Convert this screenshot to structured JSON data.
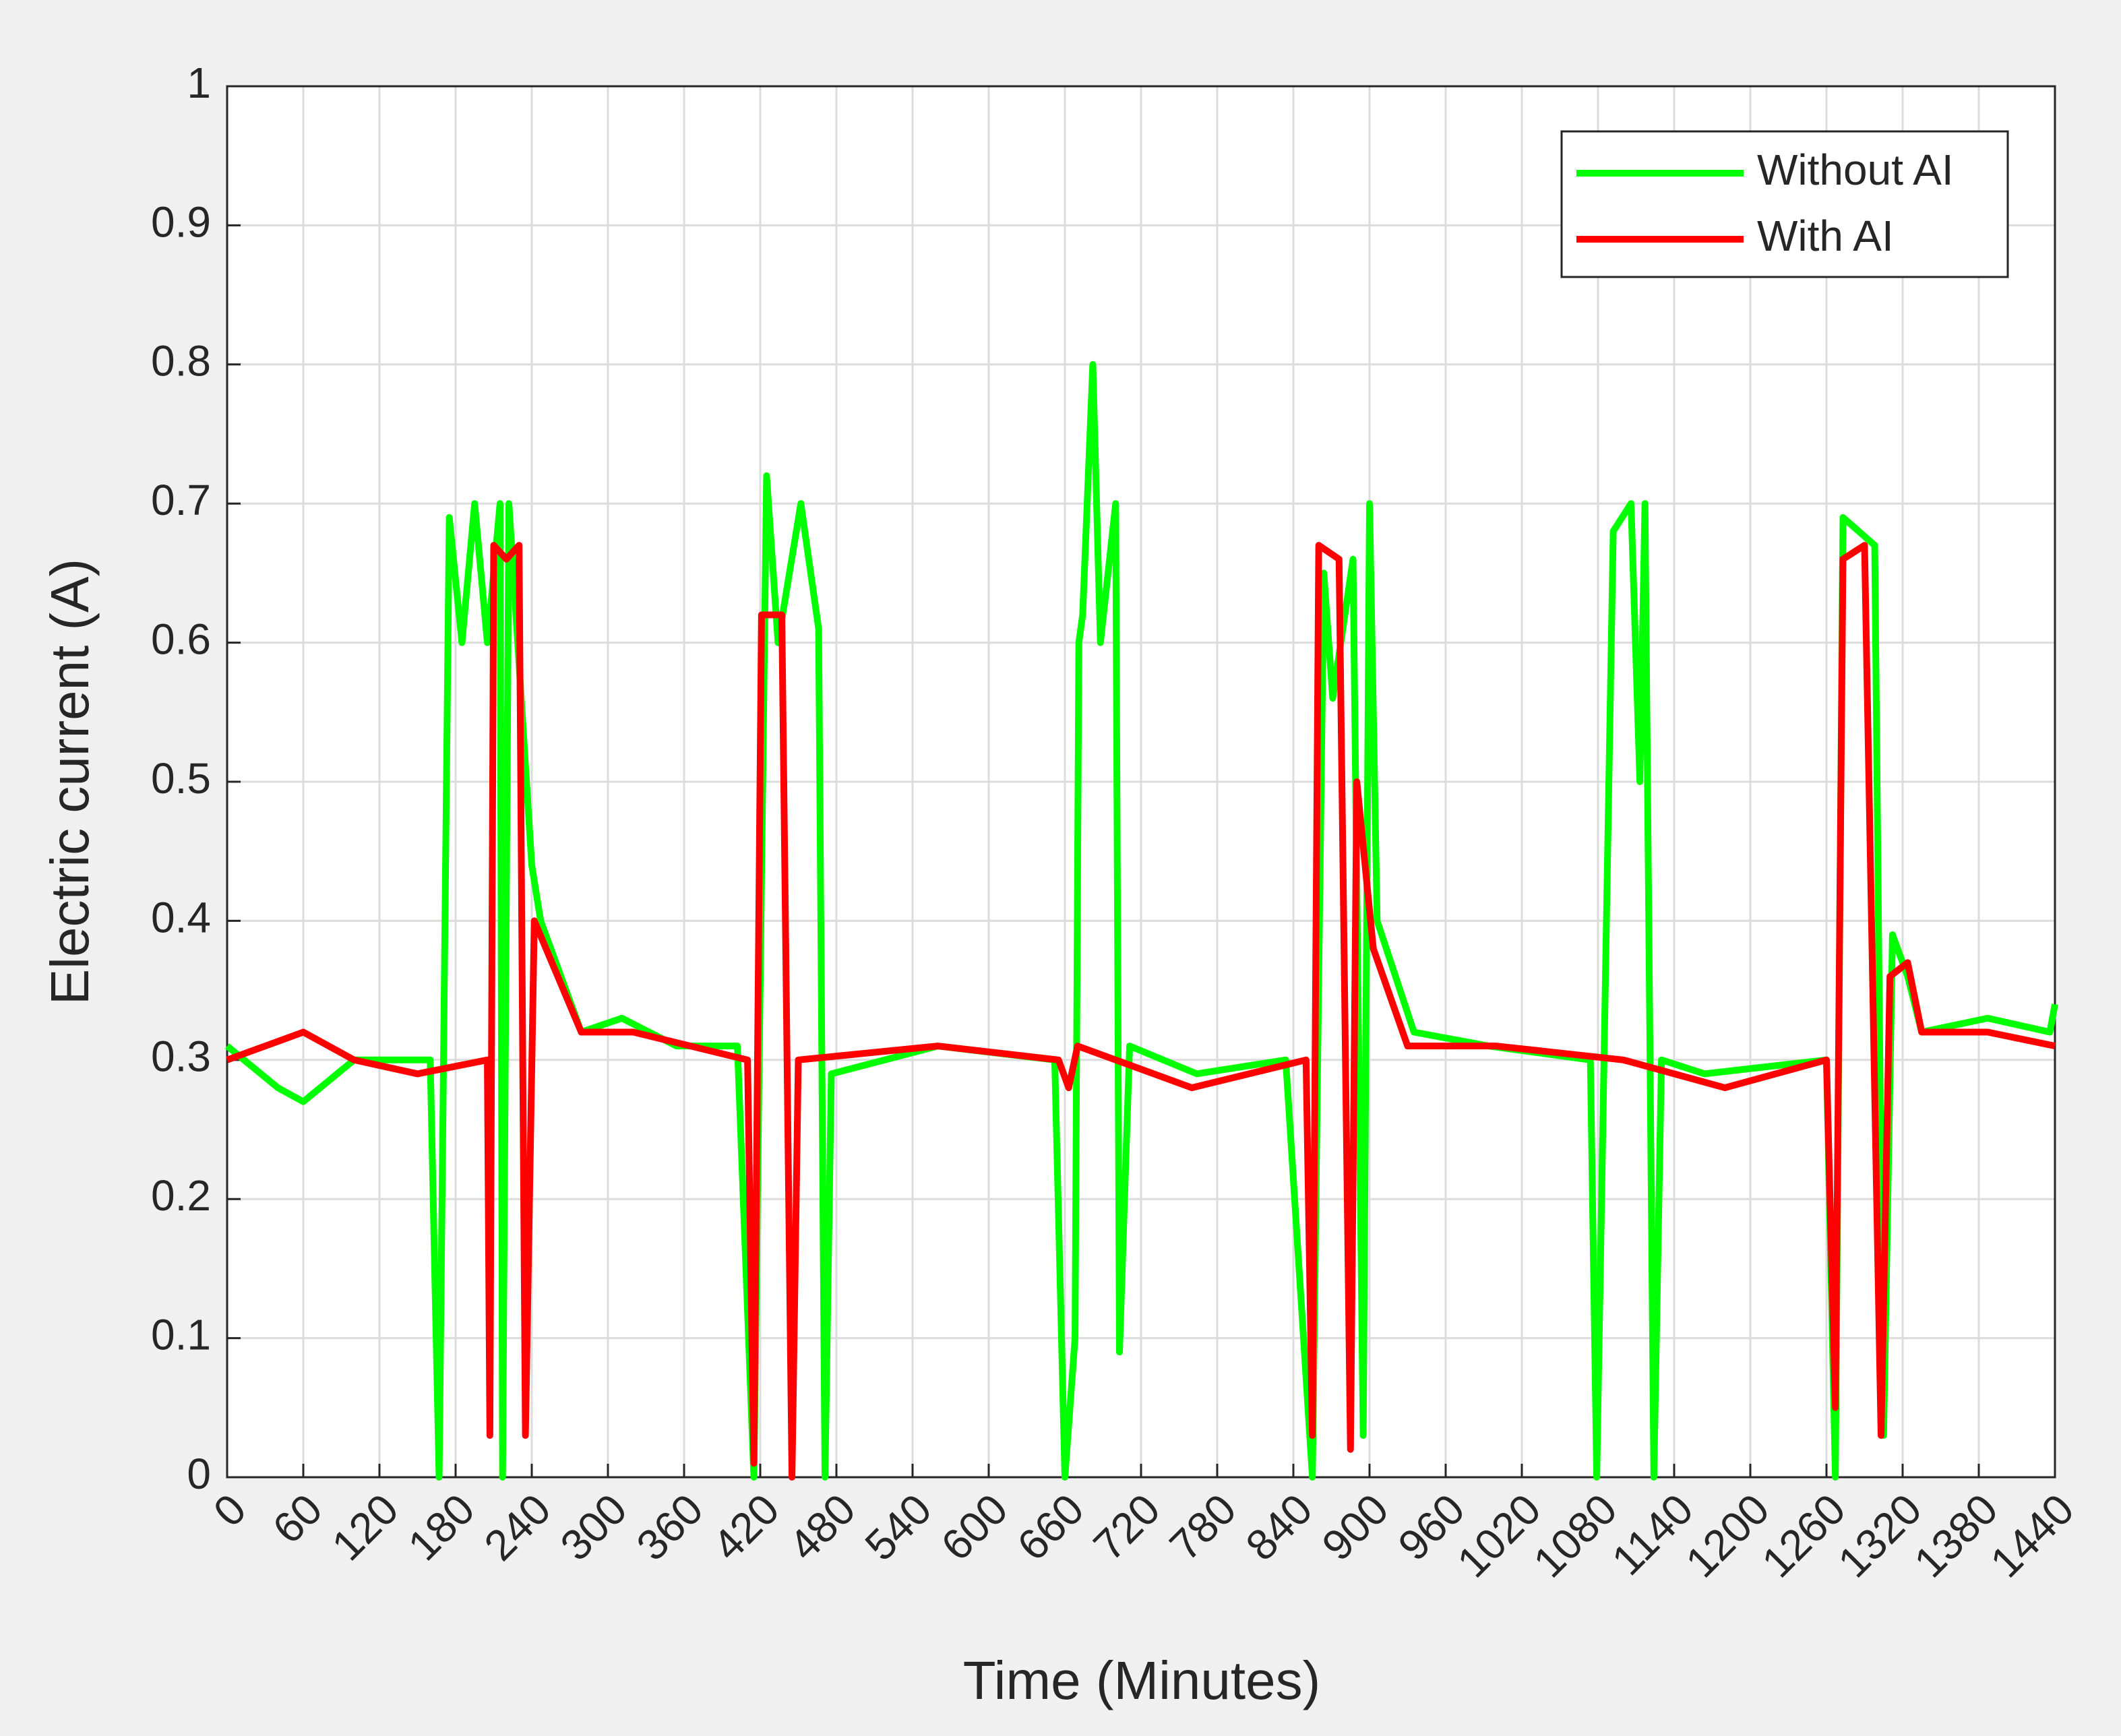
{
  "chart_data": {
    "type": "line",
    "xlabel": "Time (Minutes)",
    "ylabel": "Electric current (A)",
    "xlim": [
      0,
      1440
    ],
    "xticks": [
      0,
      60,
      120,
      180,
      240,
      300,
      360,
      420,
      480,
      540,
      600,
      660,
      720,
      780,
      840,
      900,
      960,
      1020,
      1080,
      1140,
      1200,
      1260,
      1320,
      1380,
      1440
    ],
    "ylim": [
      0,
      1
    ],
    "yticks": [
      0,
      0.1,
      0.2,
      0.3,
      0.4,
      0.5,
      0.6,
      0.7,
      0.8,
      0.9,
      1
    ],
    "grid": true,
    "legend": "northeast",
    "series": [
      {
        "name": "Without AI",
        "color": "#00ff00",
        "x": [
          0,
          40,
          60,
          100,
          160,
          167,
          175,
          185,
          195,
          205,
          215,
          217,
          222,
          240,
          247,
          279,
          311,
          354,
          402,
          415,
          425,
          434,
          452,
          466,
          471,
          476,
          560,
          652,
          660,
          668,
          671,
          674,
          682,
          688,
          700,
          703,
          711,
          764,
          834,
          855,
          864,
          871,
          887,
          895,
          900,
          906,
          935,
          994,
          1074,
          1079,
          1092,
          1106,
          1113,
          1117,
          1124,
          1130,
          1164,
          1260,
          1267,
          1273,
          1298,
          1305,
          1312,
          1324,
          1335,
          1387,
          1436,
          1440
        ],
        "values": [
          0.31,
          0.28,
          0.27,
          0.3,
          0.3,
          0,
          0.69,
          0.6,
          0.7,
          0.6,
          0.7,
          0,
          0.7,
          0.44,
          0.4,
          0.32,
          0.33,
          0.31,
          0.31,
          0,
          0.72,
          0.6,
          0.7,
          0.61,
          0,
          0.29,
          0.31,
          0.3,
          0,
          0.1,
          0.6,
          0.62,
          0.8,
          0.6,
          0.7,
          0.09,
          0.31,
          0.29,
          0.3,
          0,
          0.65,
          0.56,
          0.66,
          0.03,
          0.7,
          0.4,
          0.32,
          0.31,
          0.3,
          0,
          0.68,
          0.7,
          0.5,
          0.7,
          0,
          0.3,
          0.29,
          0.3,
          0,
          0.69,
          0.67,
          0.03,
          0.39,
          0.36,
          0.32,
          0.33,
          0.32,
          0.34
        ]
      },
      {
        "name": "With AI",
        "color": "#ff0000",
        "x": [
          0,
          30,
          60,
          100,
          150,
          205,
          207,
          210,
          220,
          230,
          235,
          242,
          279,
          320,
          410,
          415,
          421,
          437,
          445,
          450,
          560,
          655,
          663,
          670,
          760,
          850,
          855,
          860,
          876,
          885,
          890,
          903,
          930,
          1000,
          1100,
          1180,
          1260,
          1267,
          1273,
          1290,
          1303,
          1310,
          1324,
          1335,
          1387,
          1440
        ],
        "values": [
          0.3,
          0.31,
          0.32,
          0.3,
          0.29,
          0.3,
          0.03,
          0.67,
          0.66,
          0.67,
          0.03,
          0.4,
          0.32,
          0.32,
          0.3,
          0.01,
          0.62,
          0.62,
          0,
          0.3,
          0.31,
          0.3,
          0.28,
          0.31,
          0.28,
          0.3,
          0.03,
          0.67,
          0.66,
          0.02,
          0.5,
          0.38,
          0.31,
          0.31,
          0.3,
          0.28,
          0.3,
          0.05,
          0.66,
          0.67,
          0.03,
          0.36,
          0.37,
          0.32,
          0.32,
          0.31
        ]
      }
    ]
  }
}
